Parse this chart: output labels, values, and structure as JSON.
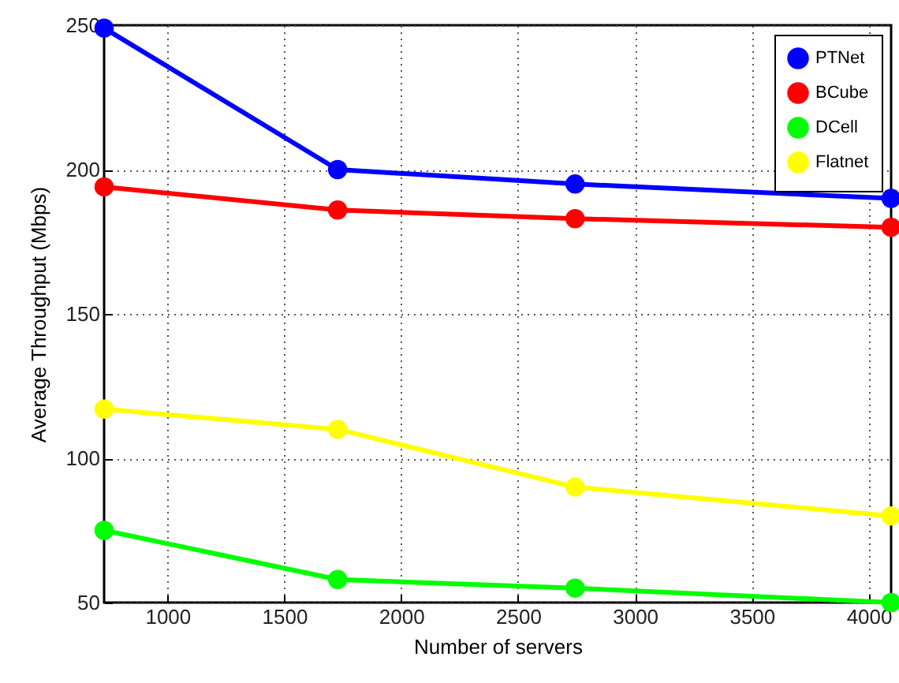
{
  "chart_data": {
    "type": "line",
    "xlabel": "Number of servers",
    "ylabel": "Average Throughput (Mbps)",
    "x": [
      729,
      1728,
      2744,
      4096
    ],
    "series": [
      {
        "name": "PTNet",
        "color": "#0000ff",
        "values": [
          249,
          200,
          195,
          190
        ]
      },
      {
        "name": "BCube",
        "color": "#ff0000",
        "values": [
          194,
          186,
          183,
          180
        ]
      },
      {
        "name": "DCell",
        "color": "#00ff00",
        "values": [
          75,
          58,
          55,
          50
        ]
      },
      {
        "name": "Flatnet",
        "color": "#ffff00",
        "values": [
          117,
          110,
          90,
          80
        ]
      }
    ],
    "xlim": [
      729,
      4096
    ],
    "xticks": [
      1000,
      1500,
      2000,
      2500,
      3000,
      3500,
      4000
    ],
    "ylim": [
      50,
      250
    ],
    "yticks": [
      50,
      100,
      150,
      200,
      250
    ],
    "grid": true,
    "legend": "top right",
    "marker": "circle",
    "line_style": "solid"
  }
}
